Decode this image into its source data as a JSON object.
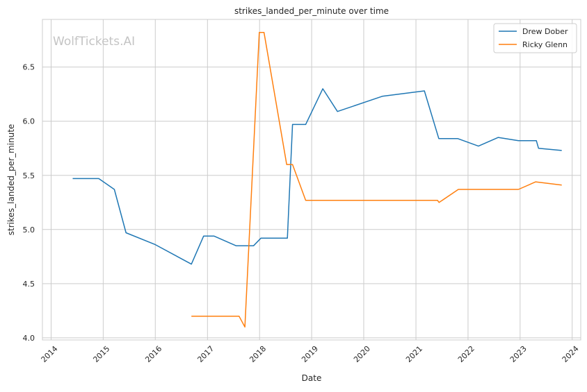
{
  "chart_data": {
    "type": "line",
    "title": "strikes_landed_per_minute over time",
    "xlabel": "Date",
    "ylabel": "strikes_landed_per_minute",
    "watermark": "WolfTickets.AI",
    "xlim": [
      "2013-11-01",
      "2024-03-01"
    ],
    "ylim": [
      3.98,
      6.94
    ],
    "x_ticks": [
      "2014-01-01",
      "2015-01-01",
      "2016-01-01",
      "2017-01-01",
      "2018-01-01",
      "2019-01-01",
      "2020-01-01",
      "2021-01-01",
      "2022-01-01",
      "2023-01-01",
      "2024-01-01"
    ],
    "x_tick_labels": [
      "2014",
      "2015",
      "2016",
      "2017",
      "2018",
      "2019",
      "2020",
      "2021",
      "2022",
      "2023",
      "2024"
    ],
    "y_ticks": [
      4.0,
      4.5,
      5.0,
      5.5,
      6.0,
      6.5
    ],
    "y_tick_labels": [
      "4.0",
      "4.5",
      "5.0",
      "5.5",
      "6.0",
      "6.5"
    ],
    "grid": true,
    "legend_position": "top-right",
    "series": [
      {
        "name": "Drew Dober",
        "color": "#1f77b4",
        "points": [
          {
            "x": "2014-06-01",
            "y": 5.47
          },
          {
            "x": "2014-12-01",
            "y": 5.47
          },
          {
            "x": "2015-03-20",
            "y": 5.37
          },
          {
            "x": "2015-06-10",
            "y": 4.97
          },
          {
            "x": "2016-01-01",
            "y": 4.86
          },
          {
            "x": "2016-09-10",
            "y": 4.68
          },
          {
            "x": "2016-12-05",
            "y": 4.94
          },
          {
            "x": "2017-02-15",
            "y": 4.94
          },
          {
            "x": "2017-07-20",
            "y": 4.85
          },
          {
            "x": "2017-11-20",
            "y": 4.85
          },
          {
            "x": "2018-01-10",
            "y": 4.92
          },
          {
            "x": "2018-07-15",
            "y": 4.92
          },
          {
            "x": "2018-08-20",
            "y": 5.97
          },
          {
            "x": "2018-11-20",
            "y": 5.97
          },
          {
            "x": "2019-03-20",
            "y": 6.3
          },
          {
            "x": "2019-07-01",
            "y": 6.09
          },
          {
            "x": "2020-05-10",
            "y": 6.23
          },
          {
            "x": "2021-03-01",
            "y": 6.28
          },
          {
            "x": "2021-06-10",
            "y": 5.84
          },
          {
            "x": "2021-10-20",
            "y": 5.84
          },
          {
            "x": "2022-03-15",
            "y": 5.77
          },
          {
            "x": "2022-08-01",
            "y": 5.85
          },
          {
            "x": "2022-12-20",
            "y": 5.82
          },
          {
            "x": "2023-04-25",
            "y": 5.82
          },
          {
            "x": "2023-05-10",
            "y": 5.75
          },
          {
            "x": "2023-10-20",
            "y": 5.73
          }
        ]
      },
      {
        "name": "Ricky Glenn",
        "color": "#ff7f0e",
        "points": [
          {
            "x": "2016-09-10",
            "y": 4.2
          },
          {
            "x": "2017-08-10",
            "y": 4.2
          },
          {
            "x": "2017-09-20",
            "y": 4.1
          },
          {
            "x": "2017-12-30",
            "y": 6.82
          },
          {
            "x": "2018-02-01",
            "y": 6.82
          },
          {
            "x": "2018-07-10",
            "y": 5.6
          },
          {
            "x": "2018-08-20",
            "y": 5.6
          },
          {
            "x": "2018-11-20",
            "y": 5.27
          },
          {
            "x": "2021-06-01",
            "y": 5.27
          },
          {
            "x": "2021-06-12",
            "y": 5.25
          },
          {
            "x": "2021-10-25",
            "y": 5.37
          },
          {
            "x": "2022-12-20",
            "y": 5.37
          },
          {
            "x": "2023-04-20",
            "y": 5.44
          },
          {
            "x": "2023-10-20",
            "y": 5.41
          }
        ]
      }
    ]
  }
}
